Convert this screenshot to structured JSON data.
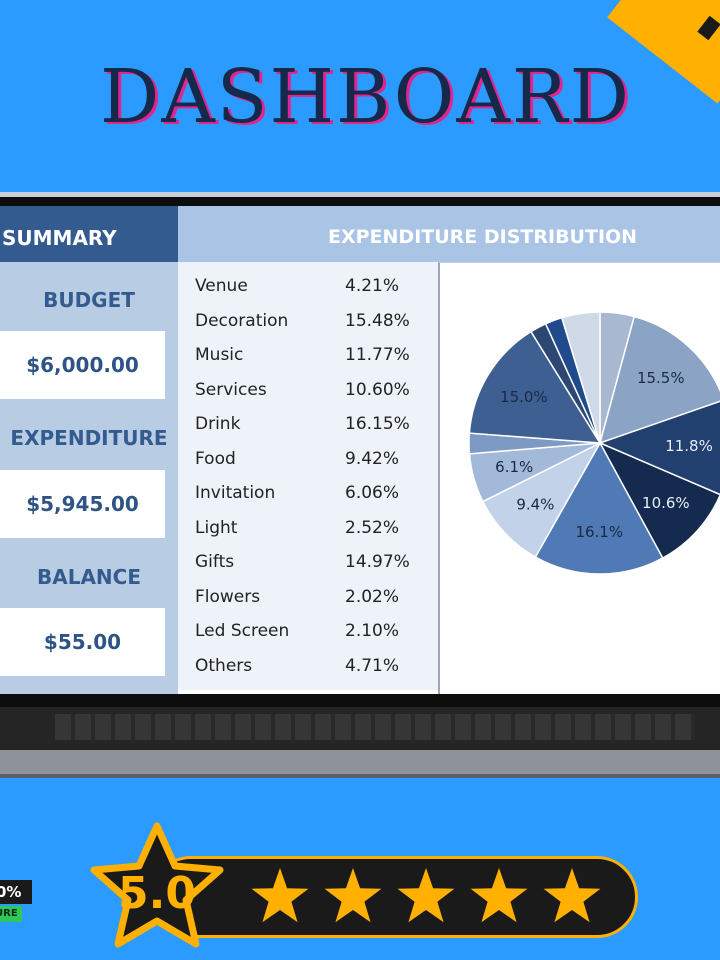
{
  "header": {
    "title": "DASHBOARD"
  },
  "summary": {
    "heading": "SUMMARY",
    "budget_label": "BUDGET",
    "budget_value": "$6,000.00",
    "expenditure_label": "EXPENDITURE",
    "expenditure_value": "$5,945.00",
    "balance_label": "BALANCE",
    "balance_value": "$55.00"
  },
  "expenditure": {
    "heading": "EXPENDITURE DISTRIBUTION",
    "items": [
      {
        "name": "Venue",
        "pct": "4.21%"
      },
      {
        "name": "Decoration",
        "pct": "15.48%"
      },
      {
        "name": "Music",
        "pct": "11.77%"
      },
      {
        "name": "Services",
        "pct": "10.60%"
      },
      {
        "name": "Drink",
        "pct": "16.15%"
      },
      {
        "name": "Food",
        "pct": "9.42%"
      },
      {
        "name": "Invitation",
        "pct": "6.06%"
      },
      {
        "name": "Light",
        "pct": "2.52%"
      },
      {
        "name": "Gifts",
        "pct": "14.97%"
      },
      {
        "name": "Flowers",
        "pct": "2.02%"
      },
      {
        "name": "Led Screen",
        "pct": "2.10%"
      },
      {
        "name": "Others",
        "pct": "4.71%"
      }
    ]
  },
  "chart_data": {
    "type": "pie",
    "categories": [
      "Venue",
      "Decoration",
      "Music",
      "Services",
      "Drink",
      "Food",
      "Invitation",
      "Light",
      "Gifts",
      "Flowers",
      "Led Screen",
      "Others"
    ],
    "values": [
      4.21,
      15.48,
      11.77,
      10.6,
      16.15,
      9.42,
      6.06,
      2.52,
      14.97,
      2.02,
      2.1,
      4.71
    ],
    "data_labels": [
      "",
      "15.5%",
      "11.8%",
      "10.6%",
      "16.1%",
      "9.4%",
      "6.1%",
      "",
      "15.0%",
      "",
      "",
      ""
    ],
    "colors": [
      "#a7b8d0",
      "#8ba3c5",
      "#22406f",
      "#142a4f",
      "#4f7ab5",
      "#c2d2e8",
      "#a2b9da",
      "#7d9ac5",
      "#3d5f92",
      "#2c4772",
      "#1f4b8c",
      "#cfd9e7"
    ],
    "label_colors": [
      "#1a2a44",
      "#1a2a44",
      "#e8eef7",
      "#e8eef7",
      "#1a2a44",
      "#1a2a44",
      "#1a2a44",
      "#1a2a44",
      "#1a2a44",
      "#1a2a44",
      "#1a2a44",
      "#1a2a44"
    ]
  },
  "rating": {
    "score": "5.0",
    "stars": 5,
    "badge_top": "0%",
    "badge_bottom": "URE"
  },
  "colors": {
    "background": "#2b9bff",
    "accent": "#ffb000",
    "header_dark": "#345b8f"
  }
}
